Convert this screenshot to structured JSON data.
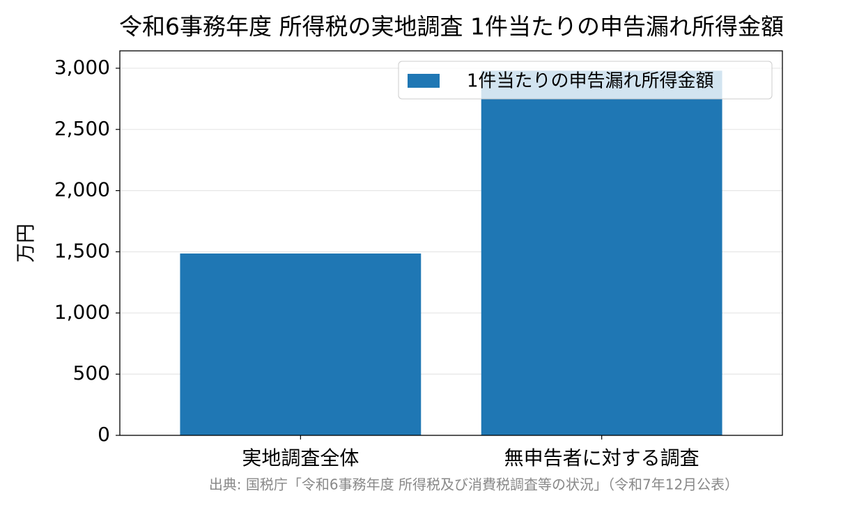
{
  "chart_data": {
    "type": "bar",
    "title": "令和6事務年度 所得税の実地調査 1件当たりの申告漏れ所得金額",
    "ylabel": "万円",
    "categories": [
      "実地調査全体",
      "無申告者に対する調査"
    ],
    "series": [
      {
        "name": "1件当たりの申告漏れ所得金額",
        "color": "#1f77b4",
        "values": [
          1486,
          2980
        ]
      }
    ],
    "ylim": [
      0,
      3142
    ],
    "yticks": [
      0,
      500,
      {
        "value": 1000,
        "label": "1,000"
      },
      {
        "value": 1500,
        "label": "1,500"
      },
      {
        "value": 2000,
        "label": "2,000"
      },
      {
        "value": 2500,
        "label": "2,500"
      },
      {
        "value": 3000,
        "label": "3,000"
      }
    ],
    "grid": true,
    "legend": "upper right",
    "source": "出典: 国税庁「令和6事務年度 所得税及び消費税調査等の状況」（令和7年12月公表）"
  }
}
